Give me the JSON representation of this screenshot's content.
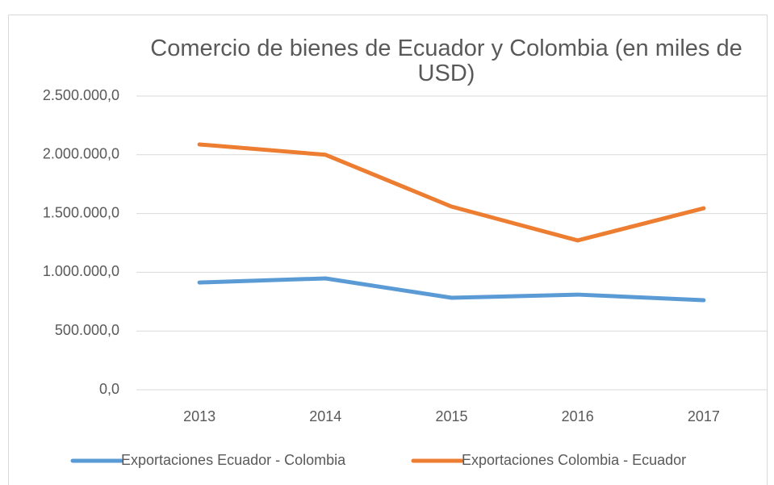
{
  "chart_data": {
    "type": "line",
    "title": "Comercio de bienes de Ecuador y Colombia (en miles de USD)",
    "categories": [
      "2013",
      "2014",
      "2015",
      "2016",
      "2017"
    ],
    "series": [
      {
        "name": "Exportaciones Ecuador - Colombia",
        "color": "#5b9bd5",
        "values": [
          913000,
          948000,
          783000,
          810000,
          762000
        ]
      },
      {
        "name": "Exportaciones Colombia - Ecuador",
        "color": "#ed7d31",
        "values": [
          2088000,
          2000000,
          1559000,
          1271000,
          1545000
        ]
      }
    ],
    "ylim": [
      0,
      2500000
    ],
    "yticks": [
      {
        "value": 0,
        "label": "0,0"
      },
      {
        "value": 500000,
        "label": "500.000,0"
      },
      {
        "value": 1000000,
        "label": "1.000.000,0"
      },
      {
        "value": 1500000,
        "label": "1.500.000,0"
      },
      {
        "value": 2000000,
        "label": "2.000.000,0"
      },
      {
        "value": 2500000,
        "label": "2.500.000,0"
      }
    ],
    "grid": true,
    "legend": "bottom"
  }
}
